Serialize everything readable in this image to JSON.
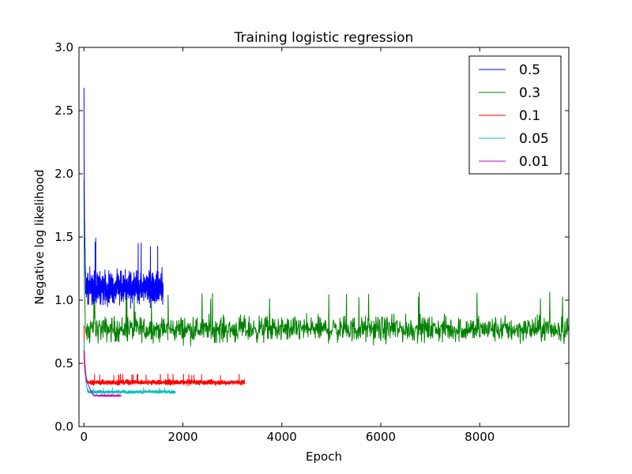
{
  "chart_data": {
    "type": "line",
    "title": "Training logistic regression",
    "xlabel": "Epoch",
    "ylabel": "Negative log likelihood",
    "xlim": [
      -100,
      9800
    ],
    "ylim": [
      0.0,
      3.0
    ],
    "xticks": [
      0,
      2000,
      4000,
      6000,
      8000
    ],
    "yticks": [
      0.0,
      0.5,
      1.0,
      1.5,
      2.0,
      2.5,
      3.0
    ],
    "xtick_labels": [
      "0",
      "2000",
      "4000",
      "6000",
      "8000"
    ],
    "ytick_labels": [
      "0.0",
      "0.5",
      "1.0",
      "1.5",
      "2.0",
      "2.5",
      "3.0"
    ],
    "grid": false,
    "legend_position": "top-right",
    "series": [
      {
        "name": "0.5",
        "color": "#0000ff",
        "epochs": 1600,
        "start": 2.68,
        "initial_drop_epochs": 40,
        "plateau_mean": 1.1,
        "noise_amplitude": 0.18,
        "peak": 1.5
      },
      {
        "name": "0.3",
        "color": "#008000",
        "epochs": 9800,
        "start": 1.95,
        "initial_drop_epochs": 30,
        "plateau_mean": 0.77,
        "noise_amplitude": 0.15,
        "peak": 1.07
      },
      {
        "name": "0.1",
        "color": "#ff0000",
        "epochs": 3250,
        "start": 0.8,
        "initial_drop_epochs": 60,
        "plateau_mean": 0.35,
        "noise_amplitude": 0.03,
        "peak": 0.42
      },
      {
        "name": "0.05",
        "color": "#00bfbf",
        "epochs": 1850,
        "start": 0.68,
        "initial_drop_epochs": 80,
        "plateau_mean": 0.275,
        "noise_amplitude": 0.02,
        "peak": 0.31
      },
      {
        "name": "0.01",
        "color": "#bf00bf",
        "epochs": 750,
        "start": 0.6,
        "initial_drop_epochs": 200,
        "plateau_mean": 0.245,
        "noise_amplitude": 0.006,
        "peak": 0.26
      }
    ]
  }
}
